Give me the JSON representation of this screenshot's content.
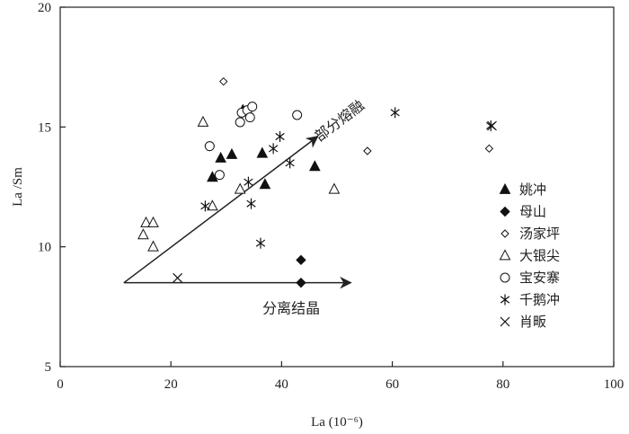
{
  "chart_data": {
    "type": "scatter",
    "xlabel": "La (10⁻⁶)",
    "ylabel": "La /Sm",
    "xlim": [
      0,
      100
    ],
    "ylim": [
      5,
      20
    ],
    "x_ticks": [
      0,
      20,
      40,
      60,
      80,
      100
    ],
    "y_ticks": [
      5,
      10,
      15,
      20
    ],
    "x_tick_labels": [
      "0",
      "20",
      "40",
      "60",
      "80",
      "100"
    ],
    "y_tick_labels": [
      "5",
      "10",
      "15",
      "20"
    ],
    "grid": false,
    "legend_position": "right",
    "series": [
      {
        "name": "姚冲",
        "marker": "triangle-filled",
        "points": [
          [
            27.5,
            12.9
          ],
          [
            29,
            13.7
          ],
          [
            31,
            13.85
          ],
          [
            33,
            15.7
          ],
          [
            36.5,
            13.9
          ],
          [
            37,
            12.6
          ],
          [
            46,
            13.35
          ]
        ]
      },
      {
        "name": "母山",
        "marker": "diamond-filled",
        "points": [
          [
            27,
            14.2
          ],
          [
            43.5,
            9.45
          ],
          [
            43.5,
            8.5
          ]
        ]
      },
      {
        "name": "汤家坪",
        "marker": "diamond-open",
        "points": [
          [
            29.5,
            16.9
          ],
          [
            55.5,
            14.0
          ],
          [
            77.5,
            14.1
          ]
        ]
      },
      {
        "name": "大银尖",
        "marker": "triangle-open",
        "points": [
          [
            15,
            10.5
          ],
          [
            15.5,
            11.0
          ],
          [
            16.8,
            11.0
          ],
          [
            16.8,
            10.0
          ],
          [
            25.8,
            15.2
          ],
          [
            27.5,
            11.7
          ],
          [
            32.5,
            12.4
          ],
          [
            49.5,
            12.4
          ]
        ]
      },
      {
        "name": "宝安寨",
        "marker": "circle-open",
        "points": [
          [
            27,
            14.2
          ],
          [
            28.8,
            13.0
          ],
          [
            32.5,
            15.2
          ],
          [
            32.8,
            15.6
          ],
          [
            33.8,
            15.7
          ],
          [
            34.3,
            15.4
          ],
          [
            34.7,
            15.85
          ],
          [
            42.8,
            15.5
          ]
        ]
      },
      {
        "name": "千鹅冲",
        "marker": "asterisk",
        "points": [
          [
            26.2,
            11.7
          ],
          [
            34,
            12.7
          ],
          [
            34.5,
            11.8
          ],
          [
            36.2,
            10.15
          ],
          [
            38.5,
            14.1
          ],
          [
            39.7,
            14.6
          ],
          [
            41.5,
            13.5
          ],
          [
            60.5,
            15.6
          ],
          [
            77.8,
            15.05
          ]
        ]
      },
      {
        "name": "肖畈",
        "marker": "cross",
        "points": [
          [
            21.2,
            8.7
          ],
          [
            78,
            15.05
          ]
        ]
      }
    ],
    "annotations": [
      {
        "text": "部分熔融",
        "from": [
          11.5,
          8.5
        ],
        "to": [
          46.5,
          14.6
        ]
      },
      {
        "text": "分离结晶",
        "from": [
          11.5,
          8.5
        ],
        "to": [
          52.5,
          8.5
        ]
      }
    ]
  }
}
